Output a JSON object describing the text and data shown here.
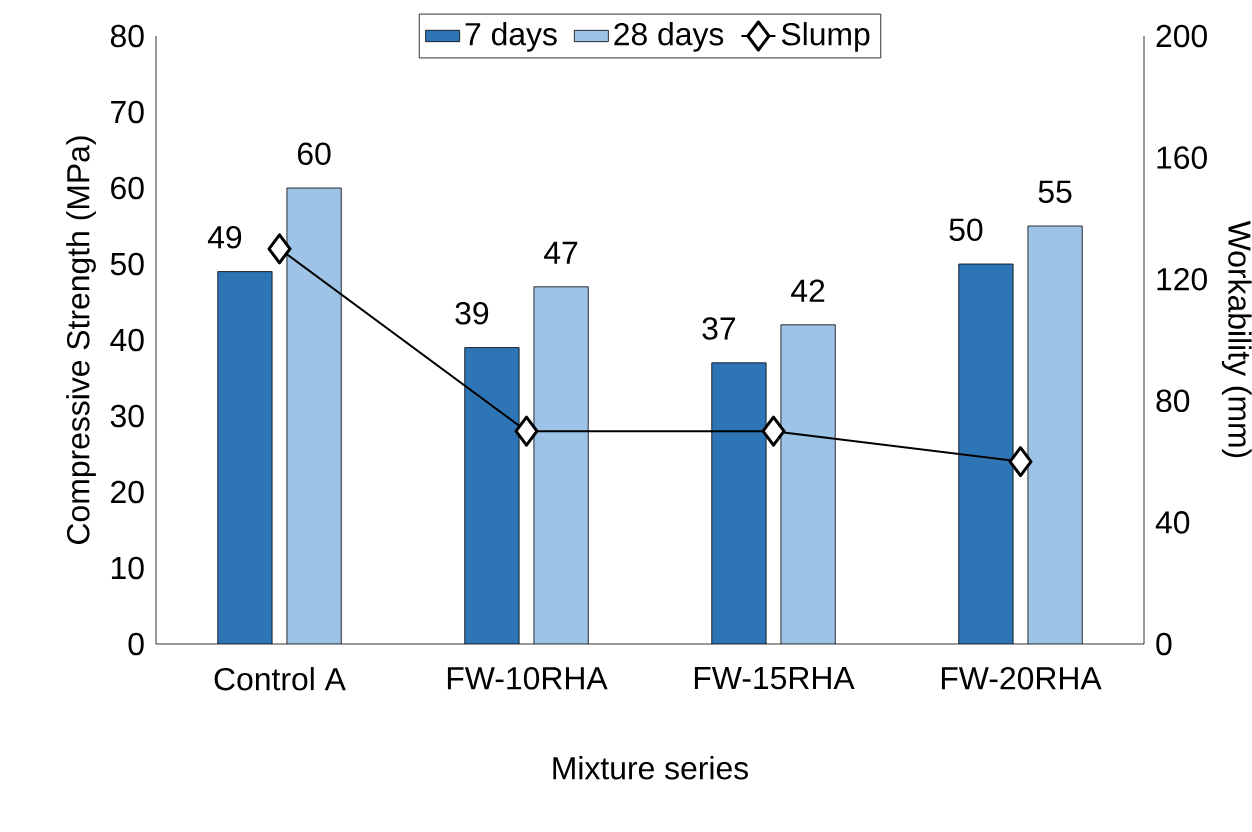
{
  "chart_data": {
    "type": "bar",
    "categories": [
      "Control A",
      "FW-10RHA",
      "FW-15RHA",
      "FW-20RHA"
    ],
    "xlabel": "Mixture series",
    "ylabel": "Compressive Strength (MPa)",
    "y2label": "Workability (mm)",
    "series": [
      {
        "name": "7 days",
        "color": "#2e75b6",
        "values": [
          49,
          39,
          37,
          50
        ],
        "value_labels": [
          "49",
          "39",
          "37",
          "50"
        ]
      },
      {
        "name": "28 days",
        "color": "#9dc3e6",
        "values": [
          60,
          47,
          42,
          55
        ],
        "value_labels": [
          "60",
          "47",
          "42",
          "55"
        ]
      },
      {
        "name": "Slump",
        "type": "line",
        "axis": "y2",
        "color": "#000000",
        "marker": "diamond",
        "values": [
          130,
          70,
          70,
          60
        ]
      }
    ],
    "ylim": [
      0,
      80
    ],
    "yticks": [
      0,
      10,
      20,
      30,
      40,
      50,
      60,
      70,
      80
    ],
    "y2lim": [
      0,
      200
    ],
    "y2ticks": [
      0,
      40,
      80,
      120,
      160,
      200
    ],
    "legend": "top"
  }
}
